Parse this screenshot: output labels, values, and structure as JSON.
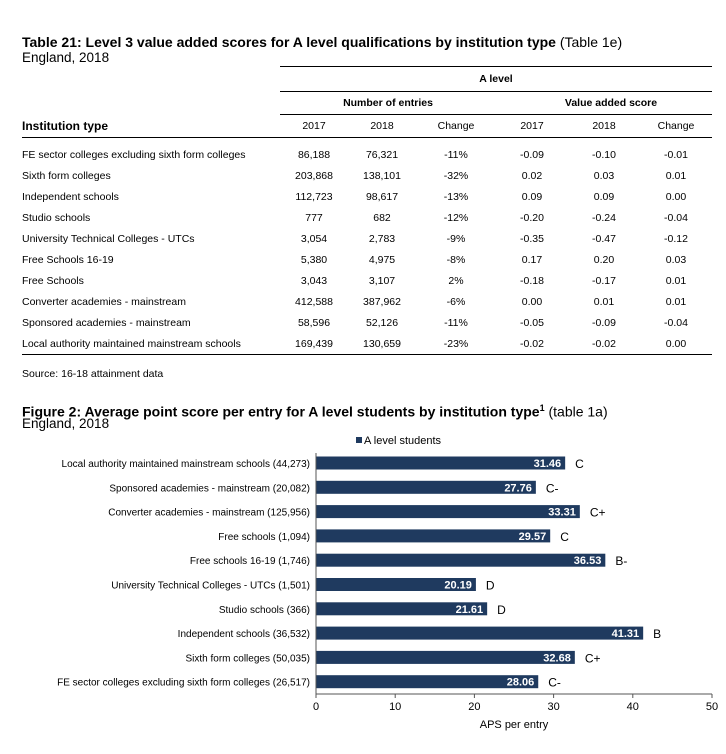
{
  "table": {
    "title": "Table 21: Level 3 value added scores for A level qualifications by institution type",
    "title_ref": "(Table 1e)",
    "subtitle": "England, 2018",
    "group_header": "A level",
    "sub_group_entries": "Number of entries",
    "sub_group_va": "Value added score",
    "columns": [
      "Institution type",
      "2017",
      "2018",
      "Change",
      "2017",
      "2018",
      "Change"
    ],
    "rows": [
      [
        "FE sector colleges excluding sixth form colleges",
        "86,188",
        "76,321",
        "-11%",
        "-0.09",
        "-0.10",
        "-0.01"
      ],
      [
        "Sixth form colleges",
        "203,868",
        "138,101",
        "-32%",
        "0.02",
        "0.03",
        "0.01"
      ],
      [
        "Independent schools",
        "112,723",
        "98,617",
        "-13%",
        "0.09",
        "0.09",
        "0.00"
      ],
      [
        "Studio schools",
        "777",
        "682",
        "-12%",
        "-0.20",
        "-0.24",
        "-0.04"
      ],
      [
        "University Technical Colleges - UTCs",
        "3,054",
        "2,783",
        "-9%",
        "-0.35",
        "-0.47",
        "-0.12"
      ],
      [
        "Free Schools 16-19",
        "5,380",
        "4,975",
        "-8%",
        "0.17",
        "0.20",
        "0.03"
      ],
      [
        "Free Schools",
        "3,043",
        "3,107",
        "2%",
        "-0.18",
        "-0.17",
        "0.01"
      ],
      [
        "Converter academies - mainstream",
        "412,588",
        "387,962",
        "-6%",
        "0.00",
        "0.01",
        "0.01"
      ],
      [
        "Sponsored academies - mainstream",
        "58,596",
        "52,126",
        "-11%",
        "-0.05",
        "-0.09",
        "-0.04"
      ],
      [
        "Local authority maintained mainstream schools",
        "169,439",
        "130,659",
        "-23%",
        "-0.02",
        "-0.02",
        "0.00"
      ]
    ],
    "source": "Source: 16-18 attainment data"
  },
  "figure": {
    "title": "Figure 2: Average point score per entry for A level students by institution type",
    "title_sup": "1",
    "title_ref": "(table 1a)",
    "subtitle": "England, 2018"
  },
  "chart_data": {
    "type": "bar",
    "orientation": "horizontal",
    "legend": "A level students",
    "legend_position": "top",
    "categories": [
      "Local authority maintained mainstream schools (44,273)",
      "Sponsored academies - mainstream (20,082)",
      "Converter academies - mainstream (125,956)",
      "Free schools (1,094)",
      "Free schools 16-19 (1,746)",
      "University Technical Colleges - UTCs (1,501)",
      "Studio schools (366)",
      "Independent schools (36,532)",
      "Sixth form colleges (50,035)",
      "FE sector colleges excluding sixth form colleges (26,517)"
    ],
    "values": [
      31.46,
      27.76,
      33.31,
      29.57,
      36.53,
      20.19,
      21.61,
      41.31,
      32.68,
      28.06
    ],
    "value_labels": [
      "31.46",
      "27.76",
      "33.31",
      "29.57",
      "36.53",
      "20.19",
      "21.61",
      "41.31",
      "32.68",
      "28.06"
    ],
    "grades": [
      "C",
      "C-",
      "C+",
      "C",
      "B-",
      "D",
      "D",
      "B",
      "C+",
      "C-"
    ],
    "xlabel": "APS per entry",
    "xlim": [
      0,
      50
    ],
    "xticks": [
      "0",
      "10",
      "20",
      "30",
      "40",
      "50"
    ],
    "bar_color": "#1f3a5f",
    "grid": false
  }
}
